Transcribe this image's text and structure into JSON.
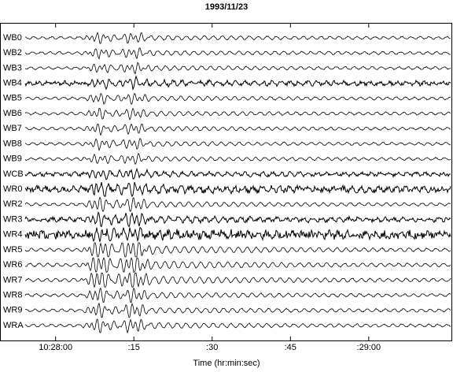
{
  "chart_data": {
    "type": "seismogram",
    "title": "1993/11/23",
    "xlabel": "Time (hr:min:sec)",
    "categories": [
      "WB0",
      "WB2",
      "WB3",
      "WB4",
      "WB5",
      "WB6",
      "WB7",
      "WB8",
      "WB9",
      "WCB",
      "WR0",
      "WR2",
      "WR3",
      "WR4",
      "WR5",
      "WR6",
      "WR7",
      "WR8",
      "WR9",
      "WRA"
    ],
    "xlim": [
      37669.5,
      37756
    ],
    "xticks": [
      {
        "value": 37680,
        "label": "10:28:00"
      },
      {
        "value": 37695,
        "label": ":15"
      },
      {
        "value": 37710,
        "label": ":30"
      },
      {
        "value": 37725,
        "label": ":45"
      },
      {
        "value": 37740,
        "label": ":29:00"
      }
    ],
    "color": "#000000"
  }
}
